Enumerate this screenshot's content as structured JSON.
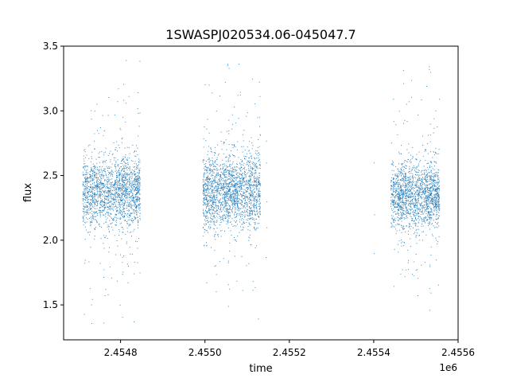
{
  "chart_data": {
    "type": "scatter",
    "title": "1SWASPJ020534.06-045047.7",
    "xlabel": "time",
    "ylabel": "flux",
    "x_offset_label": "1e6",
    "xlim": [
      2454665,
      2455600
    ],
    "ylim": [
      1.23,
      3.5
    ],
    "x_ticks": [
      2454800,
      2455000,
      2455200,
      2455400,
      2455600
    ],
    "x_tick_labels": [
      "2.4548",
      "2.4550",
      "2.4552",
      "2.4554",
      "2.4556"
    ],
    "y_ticks": [
      1.5,
      2.0,
      2.5,
      3.0,
      3.5
    ],
    "y_tick_labels": [
      "1.5",
      "2.0",
      "2.5",
      "3.0",
      "3.5"
    ],
    "grid": false,
    "marker_color": "#1f77b4",
    "series": [
      {
        "clusters": [
          {
            "x_range": [
              2454710,
              2454845
            ],
            "y_center": 2.38,
            "y_core_spread": 0.13,
            "y_min": 1.35,
            "y_max": 3.4
          },
          {
            "x_range": [
              2454995,
              2455130
            ],
            "y_center": 2.38,
            "y_core_spread": 0.14,
            "y_min": 1.35,
            "y_max": 3.37
          },
          {
            "x_range": [
              2455440,
              2455555
            ],
            "y_center": 2.35,
            "y_core_spread": 0.13,
            "y_min": 1.35,
            "y_max": 3.35
          }
        ],
        "sparse_points": [
          {
            "x": 2455145,
            "y": 2.77
          },
          {
            "x": 2455145,
            "y": 2.6
          },
          {
            "x": 2455146,
            "y": 2.3
          },
          {
            "x": 2455146,
            "y": 2.1
          },
          {
            "x": 2455144,
            "y": 1.87
          },
          {
            "x": 2455400,
            "y": 2.6
          },
          {
            "x": 2455401,
            "y": 2.2
          },
          {
            "x": 2455400,
            "y": 1.9
          }
        ]
      }
    ]
  }
}
